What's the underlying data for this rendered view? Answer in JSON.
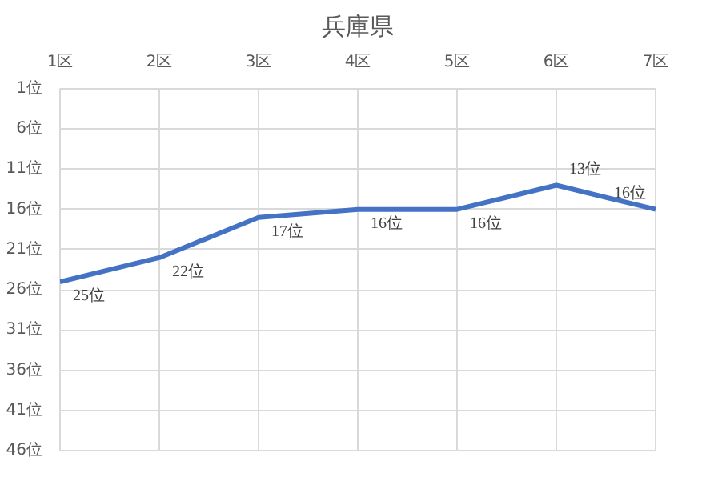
{
  "chart_data": {
    "type": "line",
    "title": "兵庫県",
    "categories": [
      "1区",
      "2区",
      "3区",
      "4区",
      "5区",
      "6区",
      "7区"
    ],
    "series": [
      {
        "color": "#4472c4",
        "values": [
          25,
          22,
          17,
          16,
          16,
          13,
          16
        ],
        "value_labels": [
          "25位",
          "22位",
          "17位",
          "16位",
          "16位",
          "13位",
          "16位"
        ]
      }
    ],
    "ylim": [
      46,
      1
    ],
    "yticks": [
      {
        "value": 1,
        "label": "1位"
      },
      {
        "value": 6,
        "label": "6位"
      },
      {
        "value": 11,
        "label": "11位"
      },
      {
        "value": 16,
        "label": "16位"
      },
      {
        "value": 21,
        "label": "21位"
      },
      {
        "value": 26,
        "label": "26位"
      },
      {
        "value": 31,
        "label": "31位"
      },
      {
        "value": 36,
        "label": "36位"
      },
      {
        "value": 41,
        "label": "41位"
      },
      {
        "value": 46,
        "label": "46位"
      }
    ],
    "grid": true
  }
}
